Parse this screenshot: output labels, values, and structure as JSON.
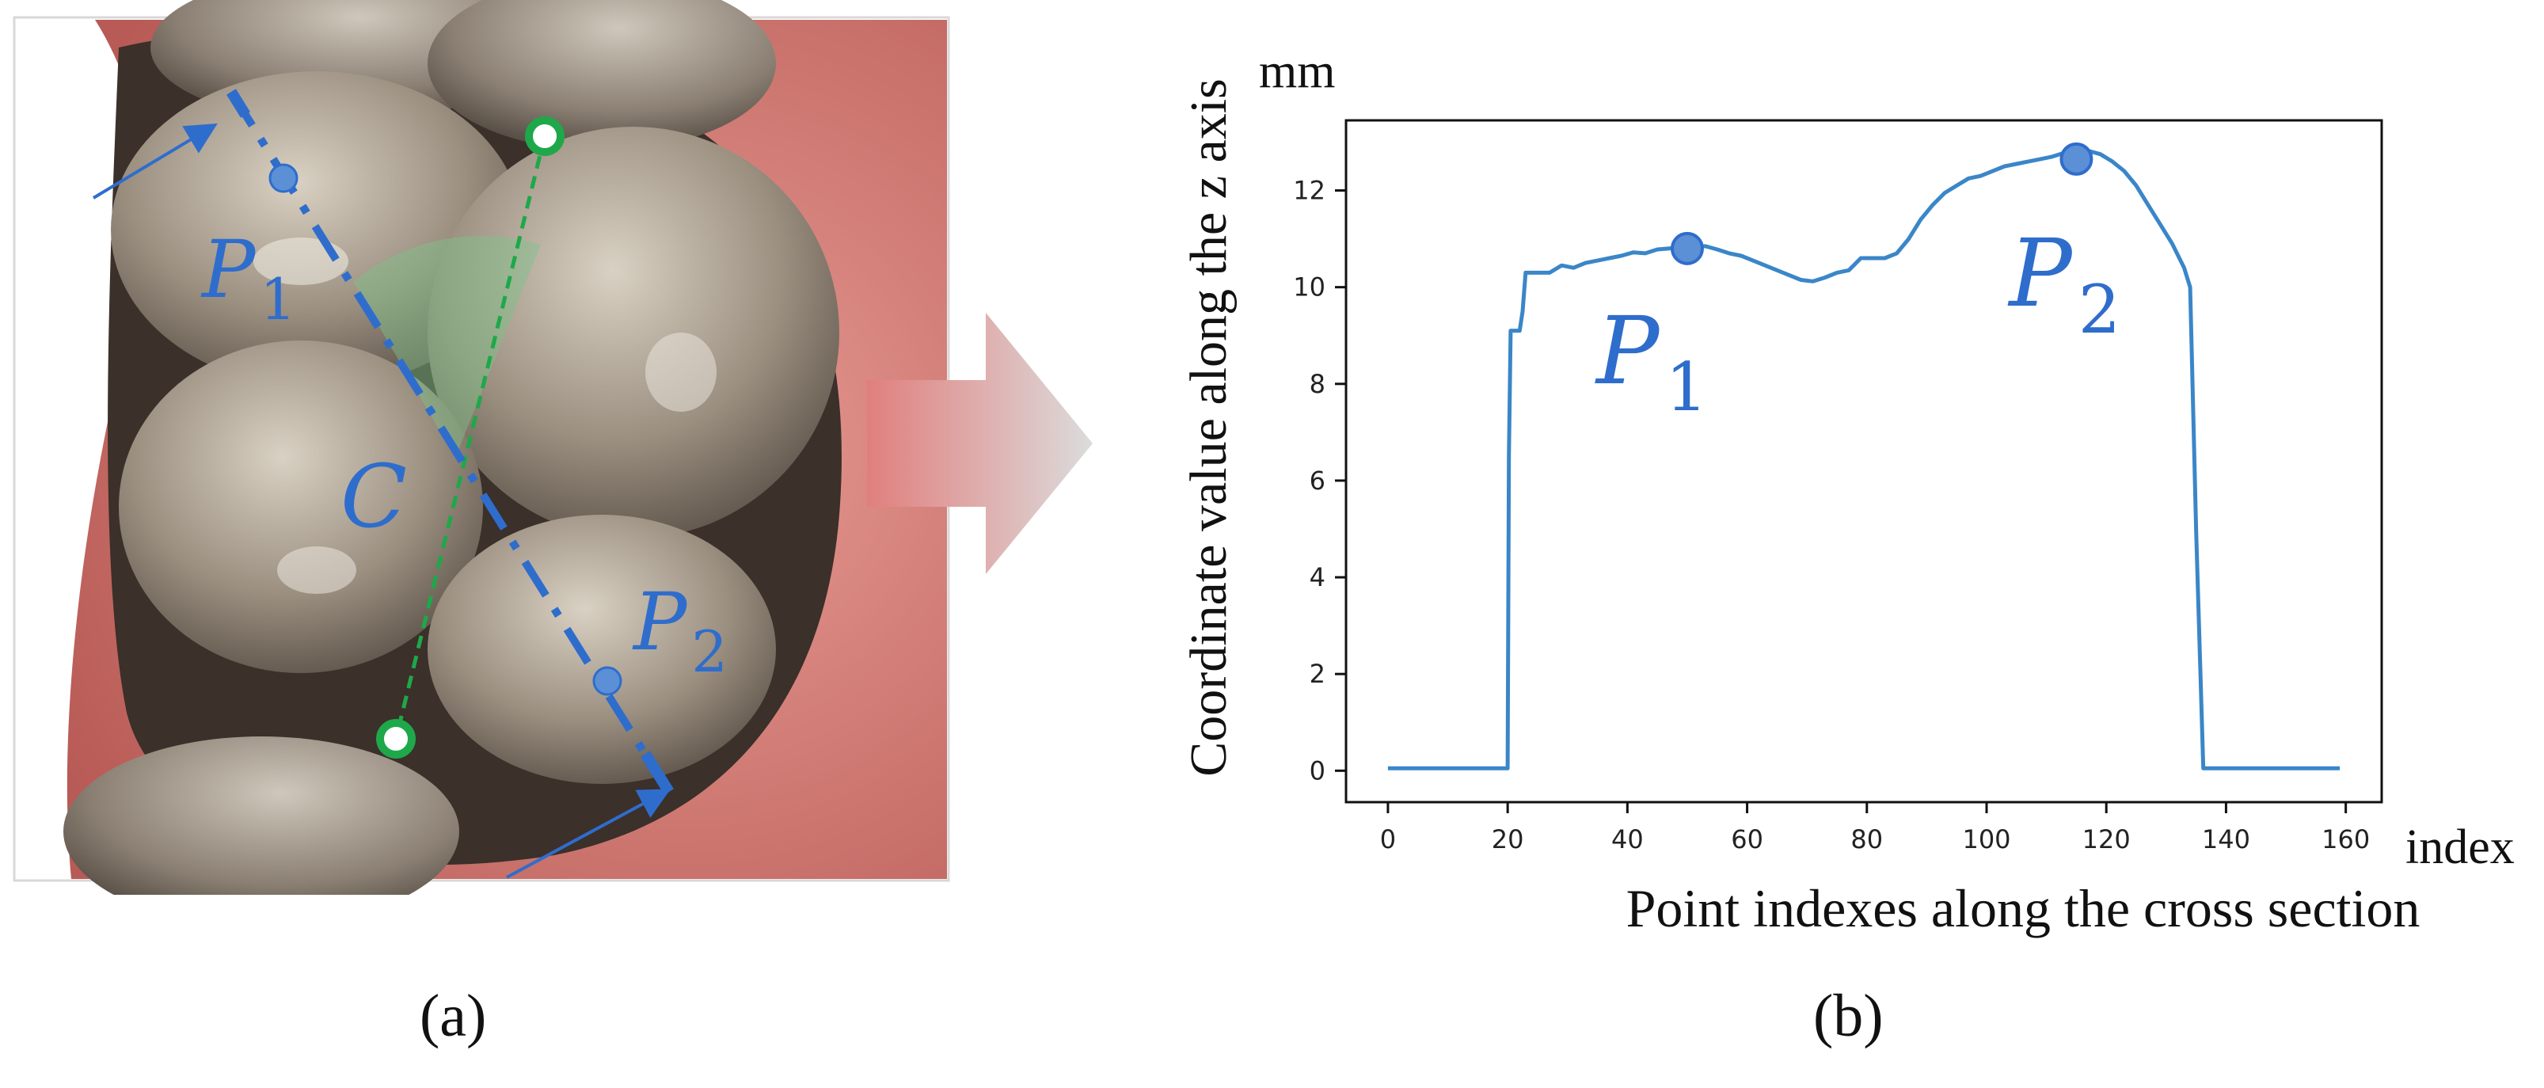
{
  "panel_a": {
    "caption": "(a)",
    "labels": {
      "p1_base": "P",
      "p1_sub": "1",
      "p2_base": "P",
      "p2_sub": "2",
      "c": "C"
    }
  },
  "panel_b": {
    "caption": "(b)"
  },
  "colors": {
    "accent_blue": "#2f6dcc",
    "point_blue": "#5b8fd6",
    "curve_blue": "#3a86c8",
    "green": "#1ea84a"
  },
  "chart_data": {
    "type": "line",
    "ylabel": "Coordinate value along the z axis",
    "xlabel": "Point indexes along the cross section",
    "x_unit": "index",
    "y_unit": "mm",
    "xlim": [
      -7,
      166
    ],
    "ylim": [
      -0.65,
      13.45
    ],
    "xticks": [
      0,
      20,
      40,
      60,
      80,
      100,
      120,
      140,
      160
    ],
    "yticks": [
      0,
      2,
      4,
      6,
      8,
      10,
      12
    ],
    "grid": false,
    "series": [
      {
        "x": [
          0,
          20,
          20.2,
          20.5,
          22,
          22.5,
          23,
          25,
          27,
          29,
          31,
          33,
          35,
          37,
          39,
          41,
          43,
          45,
          47,
          49,
          51,
          53,
          55,
          57,
          59,
          61,
          63,
          65,
          67,
          69,
          71,
          73,
          75,
          77,
          79,
          81,
          83,
          85,
          87,
          89,
          91,
          93,
          95,
          97,
          99,
          101,
          103,
          105,
          107,
          109,
          111,
          113,
          115,
          117,
          119,
          121,
          123,
          125,
          127,
          129,
          131,
          133,
          134,
          135,
          136.2,
          136.6,
          137,
          150,
          159
        ],
        "y": [
          0.05,
          0.05,
          6.5,
          9.1,
          9.1,
          9.5,
          10.3,
          10.3,
          10.3,
          10.45,
          10.4,
          10.5,
          10.55,
          10.6,
          10.65,
          10.72,
          10.7,
          10.78,
          10.8,
          10.82,
          10.82,
          10.85,
          10.78,
          10.7,
          10.65,
          10.55,
          10.45,
          10.35,
          10.25,
          10.15,
          10.12,
          10.2,
          10.3,
          10.35,
          10.6,
          10.6,
          10.6,
          10.7,
          11.0,
          11.4,
          11.7,
          11.95,
          12.1,
          12.25,
          12.3,
          12.4,
          12.5,
          12.55,
          12.6,
          12.65,
          12.7,
          12.78,
          12.8,
          12.82,
          12.75,
          12.6,
          12.4,
          12.1,
          11.7,
          11.3,
          10.9,
          10.4,
          10.0,
          5.0,
          0.05,
          0.05,
          0.05,
          0.05,
          0.05
        ]
      }
    ],
    "markers": [
      {
        "label_base": "P",
        "label_sub": "1",
        "x": 50,
        "y": 10.8
      },
      {
        "label_base": "P",
        "label_sub": "2",
        "x": 115,
        "y": 12.65
      }
    ]
  }
}
